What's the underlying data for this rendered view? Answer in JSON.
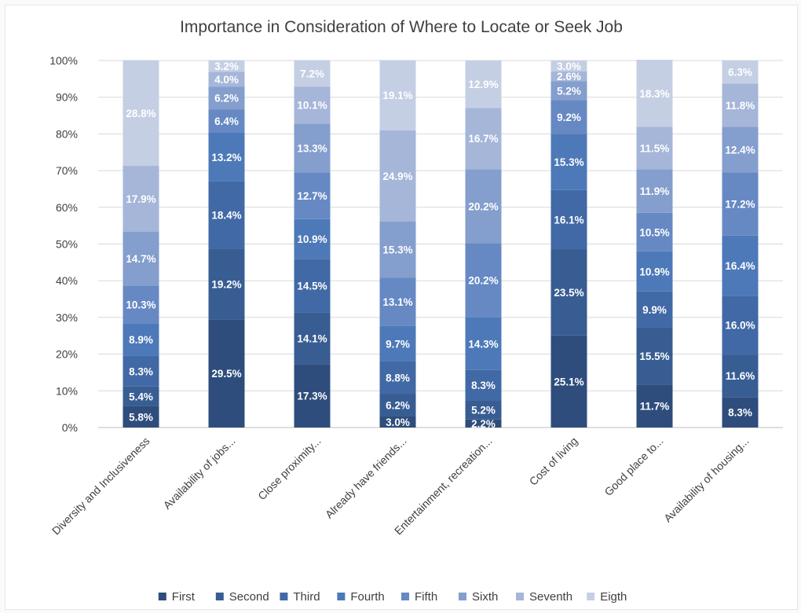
{
  "chart_data": {
    "type": "bar",
    "stacked": true,
    "title": "Importance in Consideration of Where to Locate or Seek Job",
    "ylim": [
      0,
      100
    ],
    "y_ticks": [
      "0%",
      "10%",
      "20%",
      "30%",
      "40%",
      "50%",
      "60%",
      "70%",
      "80%",
      "90%",
      "100%"
    ],
    "grid": true,
    "legend_position": "bottom",
    "categories": [
      "Diversity and Inclusiveness",
      "Availability of jobs...",
      "Close proximity...",
      "Already have friends...",
      "Entertainment, recreation...",
      "Cost of living",
      "Good place to...",
      "Availability of housing..."
    ],
    "series": [
      {
        "name": "First",
        "color": "#2e4d7c",
        "values": [
          5.8,
          29.5,
          17.3,
          3.0,
          2.2,
          25.1,
          11.7,
          8.3
        ]
      },
      {
        "name": "Second",
        "color": "#385d93",
        "values": [
          5.4,
          19.2,
          14.1,
          6.2,
          5.2,
          23.5,
          15.5,
          11.6
        ]
      },
      {
        "name": "Third",
        "color": "#4169a5",
        "values": [
          8.3,
          18.4,
          14.5,
          8.8,
          8.3,
          16.1,
          9.9,
          16.0
        ]
      },
      {
        "name": "Fourth",
        "color": "#4d79b8",
        "values": [
          8.9,
          13.2,
          10.9,
          9.7,
          14.3,
          15.3,
          10.9,
          16.4
        ]
      },
      {
        "name": "Fifth",
        "color": "#6689c4",
        "values": [
          10.3,
          6.4,
          12.7,
          13.1,
          20.2,
          9.2,
          10.5,
          17.2
        ]
      },
      {
        "name": "Sixth",
        "color": "#849ecd",
        "values": [
          14.7,
          6.2,
          13.3,
          15.3,
          20.2,
          5.2,
          11.9,
          12.4
        ]
      },
      {
        "name": "Seventh",
        "color": "#a5b6d9",
        "values": [
          17.9,
          4.0,
          10.1,
          24.9,
          16.7,
          2.6,
          11.5,
          11.8
        ]
      },
      {
        "name": "Eigth",
        "color": "#c5cfe4",
        "values": [
          28.8,
          3.2,
          7.2,
          19.1,
          12.9,
          3.0,
          18.3,
          6.3
        ]
      }
    ]
  }
}
